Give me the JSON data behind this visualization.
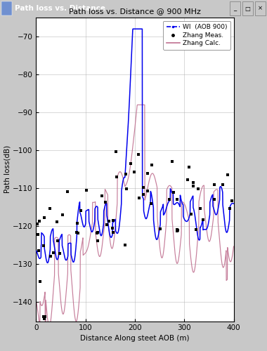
{
  "title": "Path loss vs. Distance @ 900 MHz",
  "xlabel": "Distance Along steet AOB (m)",
  "ylabel": "Path loss(dB)",
  "xlim": [
    0,
    400
  ],
  "ylim": [
    -145,
    -65
  ],
  "yticks": [
    -70,
    -80,
    -90,
    -100,
    -110,
    -120,
    -130,
    -140
  ],
  "xticks": [
    0,
    100,
    200,
    300,
    400
  ],
  "wi_color": "#0000EE",
  "zhang_calc_color": "#C07090",
  "zhang_meas_color": "#000000",
  "window_title": "Path loss vs. Distance",
  "legend_labels": [
    "WI  (AOB 900)",
    "Zhang Meas.",
    "Zhang Calc."
  ],
  "figsize": [
    3.8,
    5.0
  ],
  "dpi": 100,
  "titlebar_color": "#1a3a8a",
  "bg_color": "#c8c8c8"
}
